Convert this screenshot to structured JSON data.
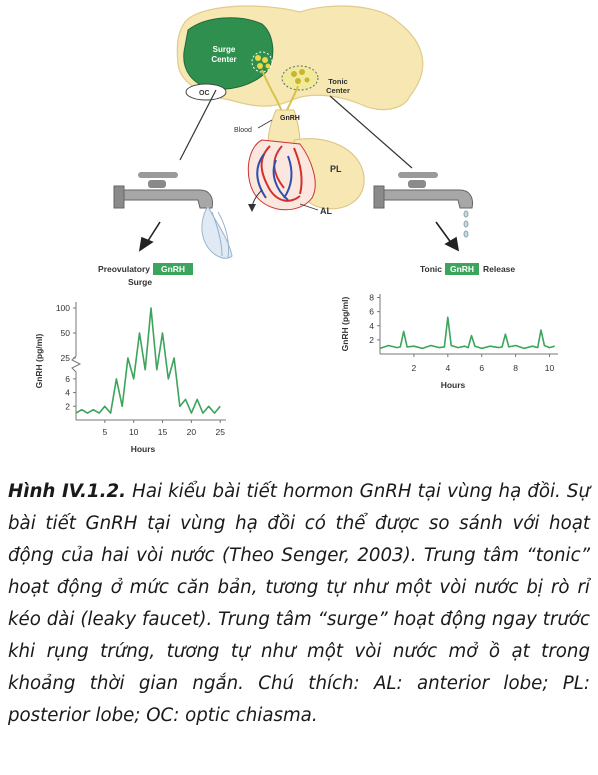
{
  "diagram": {
    "surge_center": [
      "Surge",
      "Center"
    ],
    "tonic_center": [
      "Tonic",
      "Center"
    ],
    "oc": "OC",
    "gnrh": "GnRH",
    "blood": "Blood",
    "pl": "PL",
    "al": "AL",
    "left_title_pre": "Preovulatory",
    "left_title_tag": "GnRH",
    "left_title_sub": "Surge",
    "right_title_pre": "Tonic",
    "right_title_tag": "GnRH",
    "right_title_post": "Release"
  },
  "chart_data": [
    {
      "type": "line",
      "title": "Preovulatory GnRH Surge",
      "xlabel": "Hours",
      "ylabel": "GnRH (pg/ml)",
      "xlim": [
        0,
        26
      ],
      "x_ticks": [
        5,
        10,
        15,
        20,
        25
      ],
      "y_ticks_upper": [
        25,
        50,
        100
      ],
      "y_ticks_lower": [
        2,
        4,
        6
      ],
      "axis_break": true,
      "x": [
        0,
        1,
        2,
        3,
        4,
        5,
        6,
        7,
        8,
        9,
        10,
        11,
        12,
        13,
        14,
        15,
        16,
        17,
        18,
        19,
        20,
        21,
        22,
        23,
        24,
        25
      ],
      "y": [
        1,
        1.5,
        1,
        1.5,
        1,
        2,
        1,
        6,
        2,
        25,
        6,
        50,
        10,
        100,
        10,
        50,
        6,
        25,
        2,
        3,
        1,
        3,
        1,
        2,
        1,
        2
      ]
    },
    {
      "type": "line",
      "title": "Tonic GnRH Release",
      "xlabel": "Hours",
      "ylabel": "GnRH (pg/ml)",
      "xlim": [
        0,
        10.5
      ],
      "ylim": [
        0,
        8.5
      ],
      "x_ticks": [
        2,
        4,
        6,
        8,
        10
      ],
      "y_ticks": [
        2,
        4,
        6,
        8
      ],
      "x": [
        0.0,
        0.5,
        1.0,
        1.2,
        1.4,
        1.6,
        2.0,
        2.5,
        3.0,
        3.5,
        3.8,
        4.0,
        4.2,
        4.6,
        5.0,
        5.2,
        5.4,
        5.6,
        6.0,
        6.5,
        7.0,
        7.2,
        7.4,
        7.6,
        8.0,
        8.5,
        9.0,
        9.3,
        9.5,
        9.7,
        10.0,
        10.3
      ],
      "y": [
        0.8,
        1.2,
        0.9,
        1.0,
        3.2,
        1.0,
        1.1,
        0.8,
        1.2,
        0.9,
        1.0,
        5.2,
        1.2,
        0.9,
        1.1,
        0.9,
        2.6,
        1.1,
        0.8,
        1.1,
        0.9,
        1.0,
        2.8,
        1.0,
        1.2,
        0.8,
        1.1,
        0.9,
        3.4,
        1.2,
        0.9,
        1.1
      ]
    }
  ],
  "caption": {
    "label": "Hình IV.1.2.",
    "text": " Hai kiểu bài tiết hormon GnRH tại vùng hạ đồi. Sự bài tiết GnRH tại vùng hạ đồi có thể được so sánh với hoạt động của hai vòi nước (Theo Senger, 2003). Trung tâm “tonic” hoạt động ở mức căn bản, tương tự như một vòi nước bị rò rỉ kéo dài (leaky faucet). Trung tâm “surge” hoạt động ngay trước khi rụng trứng, tương tự như một vòi nước mở ồ ạt trong khoảng thời gian ngắn. Chú thích: AL: anterior lobe; PL: posterior lobe; OC: optic chiasma."
  }
}
